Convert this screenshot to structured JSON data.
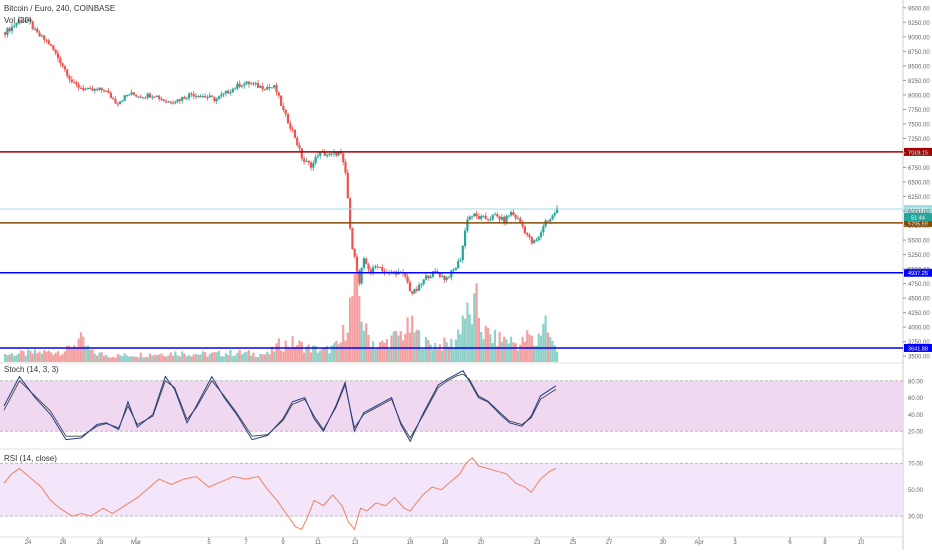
{
  "symbol_title": "Bitcoin / Euro, 240, COINBASE",
  "volume_label": "Vol (20)",
  "stoch_label": "Stoch (14, 3, 3)",
  "rsi_label": "RSI (14, close)",
  "colors": {
    "up": "#26a69a",
    "down": "#ef5350",
    "vol_up": "#8fd1c8",
    "vol_down": "#f4a0a0",
    "red_line": "#a00000",
    "orange_line": "#8a4a00",
    "blue_line": "#0000ff",
    "cyan_line": "#a0dde0",
    "stoch_band": "#f0d8f0",
    "rsi_band": "#f3e6fb",
    "rsi_line": "#f08060",
    "stoch_k": "#1e3f8a",
    "stoch_d": "#444444",
    "axis_text": "#666666"
  },
  "chart_data": [
    {
      "type": "candlestick",
      "title": "Bitcoin / Euro, 240, COINBASE",
      "y_axis_ticks": [
        "9500.00",
        "9250.00",
        "9000.00",
        "8750.00",
        "8500.00",
        "8250.00",
        "8000.00",
        "7750.00",
        "7500.00",
        "7250.00",
        "7000.00",
        "6750.00",
        "6500.00",
        "6250.00",
        "6000.00",
        "5750.00",
        "5500.00",
        "5250.00",
        "5000.00",
        "4750.00",
        "4500.00",
        "4250.00",
        "4000.00",
        "3750.00",
        "3500.00"
      ],
      "x_axis_ticks": [
        "24",
        "26",
        "28",
        "Mar",
        "5",
        "7",
        "9",
        "11",
        "13",
        "16",
        "18",
        "20",
        "23",
        "25",
        "27",
        "30",
        "Apr",
        "3",
        "6",
        "8",
        "10"
      ],
      "ylim": [
        3400,
        9600
      ],
      "horizontal_lines": [
        {
          "label": "7018.15",
          "value": 7018.15,
          "color": "red_line"
        },
        {
          "label": "6034.00",
          "value": 6034.0,
          "color": "cyan_line"
        },
        {
          "label": "5795.58",
          "value": 5795.58,
          "color": "orange_line"
        },
        {
          "label": "4937.25",
          "value": 4937.25,
          "color": "blue_line"
        },
        {
          "label": "3641.88",
          "value": 3641.88,
          "color": "blue_line"
        }
      ],
      "last_price_label": "6034.00",
      "countdown_label": "51:44",
      "close_path": [
        [
          0,
          9080
        ],
        [
          5,
          9180
        ],
        [
          10,
          9310
        ],
        [
          16,
          9250
        ],
        [
          20,
          9060
        ],
        [
          28,
          8900
        ],
        [
          36,
          8560
        ],
        [
          44,
          8180
        ],
        [
          54,
          8070
        ],
        [
          64,
          8090
        ],
        [
          72,
          7860
        ],
        [
          80,
          8020
        ],
        [
          88,
          7980
        ],
        [
          96,
          8010
        ],
        [
          104,
          7880
        ],
        [
          112,
          7920
        ],
        [
          120,
          8020
        ],
        [
          128,
          7980
        ],
        [
          136,
          7920
        ],
        [
          144,
          8060
        ],
        [
          152,
          8190
        ],
        [
          158,
          8200
        ],
        [
          164,
          8140
        ],
        [
          174,
          8130
        ],
        [
          180,
          7680
        ],
        [
          186,
          7350
        ],
        [
          192,
          6870
        ],
        [
          198,
          6780
        ],
        [
          202,
          7000
        ],
        [
          210,
          6960
        ],
        [
          216,
          7020
        ],
        [
          220,
          6600
        ],
        [
          223,
          5480
        ],
        [
          226,
          5200
        ],
        [
          228,
          4680
        ],
        [
          231,
          5160
        ],
        [
          236,
          4950
        ],
        [
          240,
          5080
        ],
        [
          246,
          4920
        ],
        [
          252,
          4950
        ],
        [
          258,
          4880
        ],
        [
          262,
          4580
        ],
        [
          266,
          4650
        ],
        [
          272,
          4880
        ],
        [
          278,
          4950
        ],
        [
          284,
          4830
        ],
        [
          290,
          5000
        ],
        [
          294,
          5200
        ],
        [
          298,
          5880
        ],
        [
          302,
          5930
        ],
        [
          306,
          5880
        ],
        [
          312,
          5870
        ],
        [
          316,
          5920
        ],
        [
          322,
          5830
        ],
        [
          326,
          5980
        ],
        [
          332,
          5820
        ],
        [
          336,
          5620
        ],
        [
          340,
          5440
        ],
        [
          344,
          5520
        ],
        [
          348,
          5820
        ],
        [
          352,
          5870
        ],
        [
          356,
          6034
        ]
      ]
    },
    {
      "type": "bar",
      "title": "Vol (20)",
      "volume_profile": [
        [
          0,
          0.1
        ],
        [
          20,
          0.12
        ],
        [
          40,
          0.15
        ],
        [
          48,
          0.3
        ],
        [
          56,
          0.12
        ],
        [
          70,
          0.08
        ],
        [
          90,
          0.1
        ],
        [
          110,
          0.12
        ],
        [
          130,
          0.1
        ],
        [
          150,
          0.12
        ],
        [
          170,
          0.1
        ],
        [
          176,
          0.22
        ],
        [
          186,
          0.25
        ],
        [
          196,
          0.18
        ],
        [
          206,
          0.15
        ],
        [
          216,
          0.22
        ],
        [
          220,
          0.5
        ],
        [
          224,
          0.85
        ],
        [
          228,
          0.9
        ],
        [
          232,
          0.4
        ],
        [
          240,
          0.2
        ],
        [
          250,
          0.3
        ],
        [
          262,
          0.45
        ],
        [
          270,
          0.25
        ],
        [
          280,
          0.22
        ],
        [
          290,
          0.25
        ],
        [
          296,
          0.65
        ],
        [
          300,
          0.55
        ],
        [
          304,
          0.75
        ],
        [
          308,
          0.4
        ],
        [
          316,
          0.3
        ],
        [
          324,
          0.3
        ],
        [
          332,
          0.22
        ],
        [
          338,
          0.35
        ],
        [
          342,
          0.2
        ],
        [
          348,
          0.6
        ],
        [
          352,
          0.25
        ],
        [
          356,
          0.2
        ]
      ]
    },
    {
      "type": "line",
      "title": "Stoch (14, 3, 3)",
      "y_axis_ticks": [
        "80.00",
        "60.00",
        "40.00",
        "20.00"
      ],
      "ylim": [
        0,
        100
      ],
      "band": [
        20,
        80
      ],
      "k_path": [
        [
          0,
          50
        ],
        [
          10,
          85
        ],
        [
          20,
          60
        ],
        [
          30,
          40
        ],
        [
          40,
          10
        ],
        [
          50,
          12
        ],
        [
          60,
          28
        ],
        [
          66,
          30
        ],
        [
          74,
          22
        ],
        [
          80,
          55
        ],
        [
          86,
          25
        ],
        [
          96,
          40
        ],
        [
          104,
          85
        ],
        [
          110,
          70
        ],
        [
          118,
          30
        ],
        [
          124,
          50
        ],
        [
          134,
          85
        ],
        [
          142,
          60
        ],
        [
          150,
          40
        ],
        [
          160,
          10
        ],
        [
          170,
          15
        ],
        [
          180,
          35
        ],
        [
          186,
          55
        ],
        [
          194,
          60
        ],
        [
          200,
          35
        ],
        [
          206,
          20
        ],
        [
          214,
          50
        ],
        [
          220,
          78
        ],
        [
          226,
          20
        ],
        [
          232,
          42
        ],
        [
          240,
          50
        ],
        [
          250,
          60
        ],
        [
          256,
          28
        ],
        [
          262,
          8
        ],
        [
          270,
          40
        ],
        [
          280,
          75
        ],
        [
          286,
          82
        ],
        [
          292,
          88
        ],
        [
          296,
          92
        ],
        [
          300,
          80
        ],
        [
          306,
          60
        ],
        [
          312,
          55
        ],
        [
          320,
          40
        ],
        [
          326,
          30
        ],
        [
          334,
          26
        ],
        [
          340,
          38
        ],
        [
          346,
          62
        ],
        [
          356,
          74
        ]
      ],
      "d_path": [
        [
          0,
          45
        ],
        [
          10,
          80
        ],
        [
          20,
          62
        ],
        [
          30,
          44
        ],
        [
          40,
          14
        ],
        [
          50,
          14
        ],
        [
          60,
          26
        ],
        [
          66,
          29
        ],
        [
          74,
          24
        ],
        [
          80,
          50
        ],
        [
          86,
          28
        ],
        [
          96,
          38
        ],
        [
          104,
          80
        ],
        [
          110,
          72
        ],
        [
          118,
          34
        ],
        [
          124,
          48
        ],
        [
          134,
          80
        ],
        [
          142,
          62
        ],
        [
          150,
          42
        ],
        [
          160,
          14
        ],
        [
          170,
          16
        ],
        [
          180,
          33
        ],
        [
          186,
          52
        ],
        [
          194,
          58
        ],
        [
          200,
          38
        ],
        [
          206,
          22
        ],
        [
          214,
          48
        ],
        [
          220,
          75
        ],
        [
          226,
          24
        ],
        [
          232,
          40
        ],
        [
          240,
          48
        ],
        [
          250,
          58
        ],
        [
          256,
          30
        ],
        [
          262,
          12
        ],
        [
          270,
          38
        ],
        [
          280,
          72
        ],
        [
          286,
          80
        ],
        [
          292,
          86
        ],
        [
          296,
          88
        ],
        [
          300,
          82
        ],
        [
          306,
          62
        ],
        [
          312,
          56
        ],
        [
          320,
          42
        ],
        [
          326,
          32
        ],
        [
          334,
          28
        ],
        [
          340,
          36
        ],
        [
          346,
          58
        ],
        [
          356,
          70
        ]
      ]
    },
    {
      "type": "line",
      "title": "RSI (14, close)",
      "y_axis_ticks": [
        "70.00",
        "50.00",
        "30.00"
      ],
      "ylim": [
        15,
        80
      ],
      "band": [
        30,
        70
      ],
      "rsi_path": [
        [
          0,
          55
        ],
        [
          5,
          62
        ],
        [
          10,
          66
        ],
        [
          16,
          60
        ],
        [
          24,
          52
        ],
        [
          30,
          42
        ],
        [
          36,
          36
        ],
        [
          44,
          30
        ],
        [
          50,
          32
        ],
        [
          56,
          30
        ],
        [
          64,
          36
        ],
        [
          70,
          32
        ],
        [
          78,
          38
        ],
        [
          86,
          44
        ],
        [
          92,
          50
        ],
        [
          100,
          58
        ],
        [
          108,
          54
        ],
        [
          116,
          58
        ],
        [
          124,
          60
        ],
        [
          132,
          52
        ],
        [
          140,
          56
        ],
        [
          148,
          60
        ],
        [
          156,
          58
        ],
        [
          164,
          60
        ],
        [
          170,
          50
        ],
        [
          176,
          42
        ],
        [
          182,
          32
        ],
        [
          188,
          22
        ],
        [
          192,
          20
        ],
        [
          196,
          30
        ],
        [
          200,
          42
        ],
        [
          206,
          38
        ],
        [
          212,
          46
        ],
        [
          218,
          38
        ],
        [
          222,
          26
        ],
        [
          226,
          20
        ],
        [
          230,
          36
        ],
        [
          234,
          34
        ],
        [
          240,
          40
        ],
        [
          246,
          38
        ],
        [
          252,
          44
        ],
        [
          258,
          36
        ],
        [
          262,
          34
        ],
        [
          270,
          46
        ],
        [
          276,
          52
        ],
        [
          282,
          50
        ],
        [
          290,
          58
        ],
        [
          294,
          62
        ],
        [
          298,
          70
        ],
        [
          302,
          74
        ],
        [
          306,
          68
        ],
        [
          312,
          66
        ],
        [
          318,
          64
        ],
        [
          324,
          62
        ],
        [
          330,
          55
        ],
        [
          336,
          52
        ],
        [
          340,
          48
        ],
        [
          346,
          58
        ],
        [
          352,
          64
        ],
        [
          356,
          66
        ]
      ]
    }
  ]
}
